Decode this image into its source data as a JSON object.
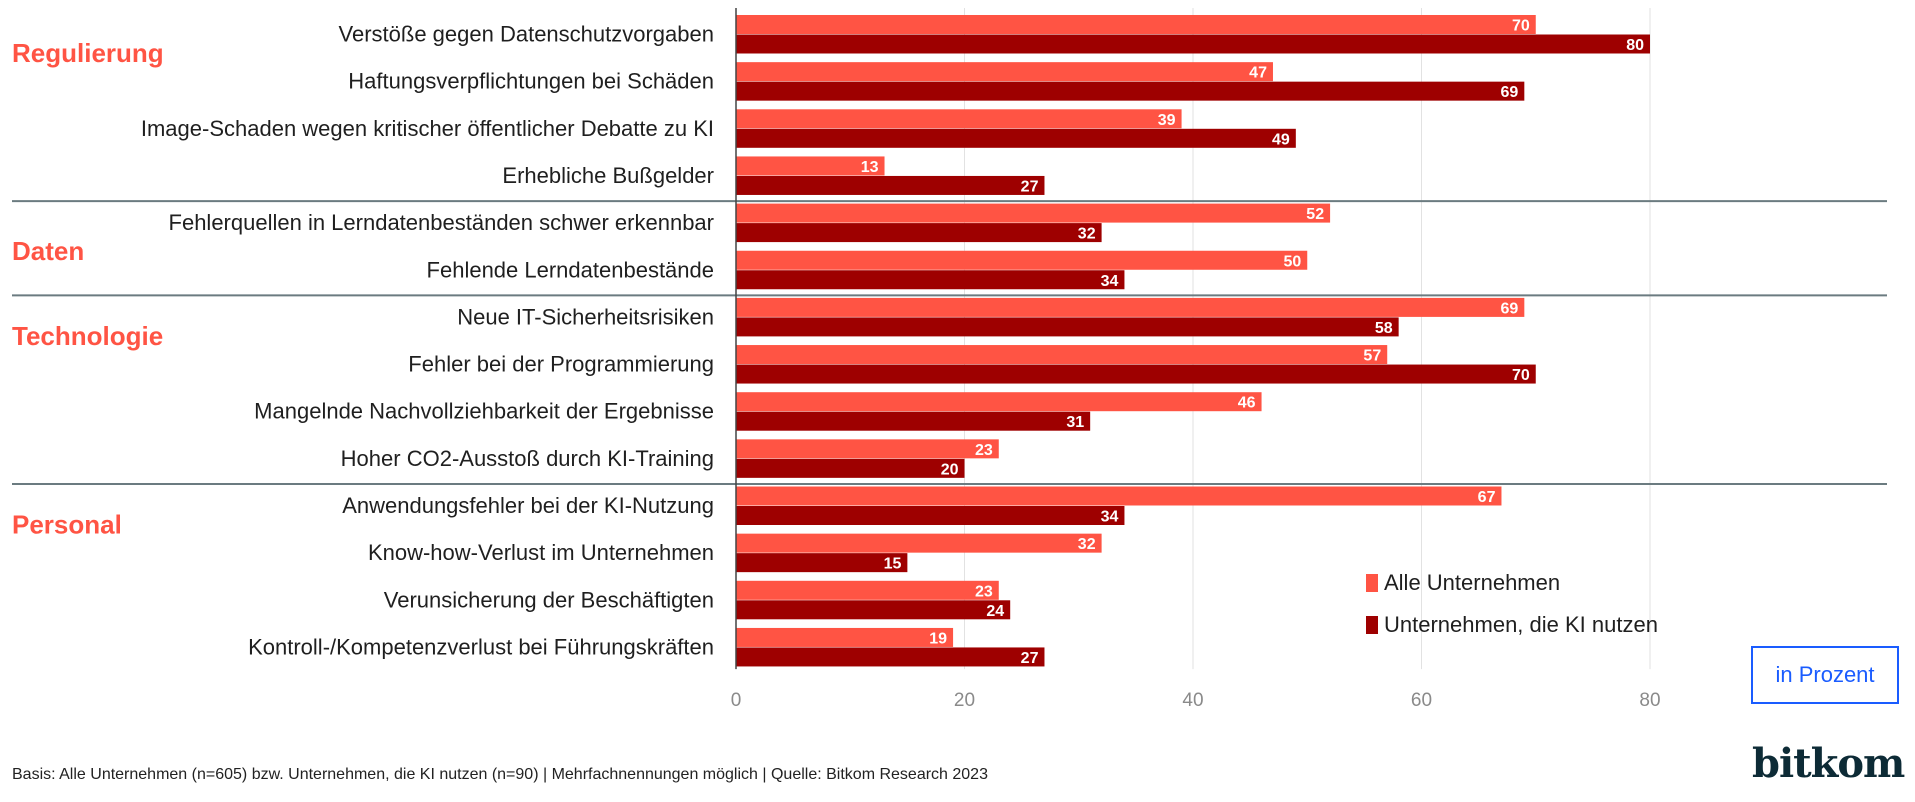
{
  "chart_data": {
    "type": "bar",
    "orientation": "horizontal",
    "groups": [
      {
        "name": "Regulierung",
        "categories": [
          "Verstöße gegen Datenschutzvorgaben",
          "Haftungsverpflichtungen bei Schäden",
          "Image-Schaden wegen kritischer öffentlicher Debatte zu KI",
          "Erhebliche Bußgelder"
        ]
      },
      {
        "name": "Daten",
        "categories": [
          "Fehlerquellen in Lerndatenbeständen schwer erkennbar",
          "Fehlende Lerndatenbestände"
        ]
      },
      {
        "name": "Technologie",
        "categories": [
          "Neue IT-Sicherheitsrisiken",
          "Fehler bei der Programmierung",
          "Mangelnde Nachvollziehbarkeit der Ergebnisse",
          "Hoher CO2-Ausstoß durch KI-Training"
        ]
      },
      {
        "name": "Personal",
        "categories": [
          "Anwendungsfehler bei der KI-Nutzung",
          "Know-how-Verlust im Unternehmen",
          "Verunsicherung der Beschäftigten",
          "Kontroll-/Kompetenzverlust bei Führungskräften"
        ]
      }
    ],
    "series": [
      {
        "name": "Alle Unternehmen",
        "color": "#ff5444",
        "values": [
          70,
          47,
          39,
          13,
          52,
          50,
          69,
          57,
          46,
          23,
          67,
          32,
          23,
          19
        ]
      },
      {
        "name": "Unternehmen, die KI nutzen",
        "color": "#9e0000",
        "values": [
          80,
          69,
          49,
          27,
          32,
          34,
          58,
          70,
          31,
          20,
          34,
          15,
          24,
          27
        ]
      }
    ],
    "xlim": [
      0,
      80
    ],
    "xticks": [
      "0",
      "20",
      "40",
      "60",
      "80"
    ],
    "grid": true,
    "legend_position": "bottom-right",
    "unit_label": "in Prozent"
  },
  "footer": "Basis: Alle Unternehmen (n=605) bzw. Unternehmen, die KI nutzen (n=90) | Mehrfachnennungen möglich | Quelle: Bitkom Research 2023",
  "logo": "bitkom"
}
